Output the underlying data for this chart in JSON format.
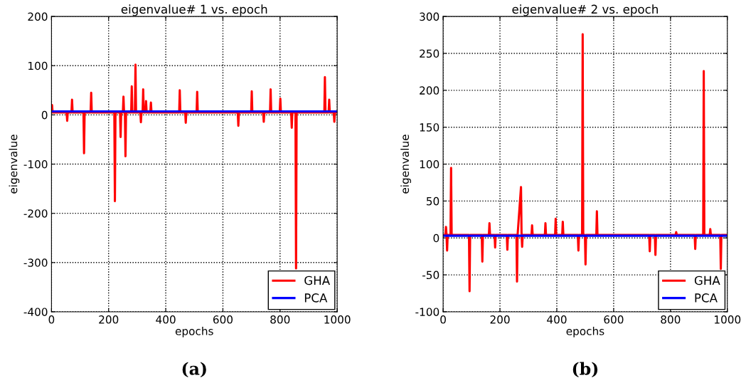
{
  "chart_data": [
    {
      "type": "line",
      "title": "eigenvalue# 1 vs. epoch",
      "xlabel": "epochs",
      "ylabel": "eigenvalue",
      "annotations": [
        "(a)"
      ],
      "xlim": [
        0,
        1000
      ],
      "xticks": [
        0,
        200,
        400,
        600,
        800,
        1000
      ],
      "ylim": [
        -400,
        200
      ],
      "yticks": [
        -400,
        -300,
        -200,
        -100,
        0,
        100,
        200
      ],
      "grid": true,
      "legend": "bottom right",
      "line_style": "solid",
      "marker": "none",
      "series": [
        {
          "name": "GHA",
          "color": "#ff0000",
          "x": [
            0,
            2,
            4,
            53,
            55,
            57,
            70,
            72,
            74,
            112,
            114,
            116,
            137,
            139,
            141,
            220,
            222,
            224,
            240,
            242,
            244,
            250,
            252,
            254,
            257,
            259,
            261,
            279,
            281,
            283,
            292,
            294,
            296,
            311,
            313,
            315,
            319,
            321,
            323,
            329,
            331,
            333,
            346,
            348,
            350,
            447,
            449,
            451,
            468,
            470,
            472,
            508,
            510,
            512,
            652,
            654,
            656,
            699,
            701,
            703,
            741,
            743,
            745,
            765,
            767,
            769,
            799,
            801,
            803,
            839,
            841,
            843,
            854,
            856,
            858,
            955,
            957,
            959,
            970,
            972,
            974,
            988,
            990,
            992,
            1000
          ],
          "values": [
            5,
            20,
            5,
            5,
            -12,
            5,
            5,
            31,
            5,
            5,
            -78,
            5,
            5,
            45,
            5,
            5,
            -175,
            5,
            5,
            -45,
            5,
            5,
            37,
            5,
            5,
            -84,
            5,
            5,
            58,
            5,
            5,
            102,
            5,
            5,
            -15,
            5,
            5,
            52,
            5,
            5,
            28,
            5,
            5,
            25,
            5,
            5,
            50,
            5,
            5,
            -16,
            5,
            5,
            47,
            5,
            5,
            -22,
            5,
            5,
            48,
            5,
            5,
            -14,
            5,
            5,
            52,
            5,
            5,
            33,
            5,
            5,
            -26,
            5,
            5,
            -312,
            5,
            5,
            77,
            5,
            5,
            31,
            5,
            5,
            -14,
            5,
            5
          ]
        },
        {
          "name": "PCA",
          "color": "#0000ff",
          "x": [
            0,
            1000
          ],
          "values": [
            7,
            7
          ]
        }
      ]
    },
    {
      "type": "line",
      "title": "eigenvalue# 2 vs. epoch",
      "xlabel": "epochs",
      "ylabel": "eigenvalue",
      "annotations": [
        "(b)"
      ],
      "xlim": [
        0,
        1000
      ],
      "xticks": [
        0,
        200,
        400,
        600,
        800,
        1000
      ],
      "ylim": [
        -100,
        300
      ],
      "yticks": [
        -100,
        -50,
        0,
        50,
        100,
        150,
        200,
        250,
        300
      ],
      "grid": true,
      "legend": "bottom right",
      "line_style": "solid",
      "marker": "none",
      "series": [
        {
          "name": "GHA",
          "color": "#ff0000",
          "x": [
            0,
            8,
            10,
            12,
            14,
            16,
            26,
            28,
            30,
            91,
            93,
            95,
            136,
            138,
            140,
            161,
            163,
            165,
            181,
            183,
            185,
            224,
            226,
            228,
            258,
            260,
            262,
            274,
            276,
            278,
            280,
            311,
            313,
            315,
            358,
            360,
            362,
            394,
            396,
            398,
            419,
            421,
            423,
            474,
            476,
            478,
            489,
            491,
            493,
            499,
            501,
            503,
            539,
            541,
            543,
            725,
            727,
            729,
            745,
            747,
            749,
            818,
            820,
            822,
            885,
            887,
            889,
            915,
            917,
            919,
            938,
            940,
            942,
            975,
            977,
            979,
            1000
          ],
          "values": [
            4,
            4,
            15,
            4,
            -17,
            4,
            4,
            95,
            4,
            4,
            -72,
            4,
            4,
            -32,
            4,
            4,
            20,
            4,
            4,
            -13,
            4,
            4,
            -16,
            4,
            4,
            -59,
            4,
            69,
            4,
            -12,
            4,
            4,
            17,
            4,
            4,
            20,
            4,
            4,
            26,
            4,
            4,
            22,
            4,
            4,
            -17,
            4,
            4,
            276,
            4,
            4,
            -36,
            4,
            4,
            36,
            4,
            4,
            -18,
            4,
            4,
            -23,
            4,
            4,
            8,
            4,
            4,
            -15,
            4,
            4,
            226,
            4,
            4,
            12,
            4,
            4,
            -42,
            4,
            4
          ]
        },
        {
          "name": "PCA",
          "color": "#0000ff",
          "x": [
            0,
            1000
          ],
          "values": [
            3,
            3
          ]
        }
      ]
    }
  ]
}
